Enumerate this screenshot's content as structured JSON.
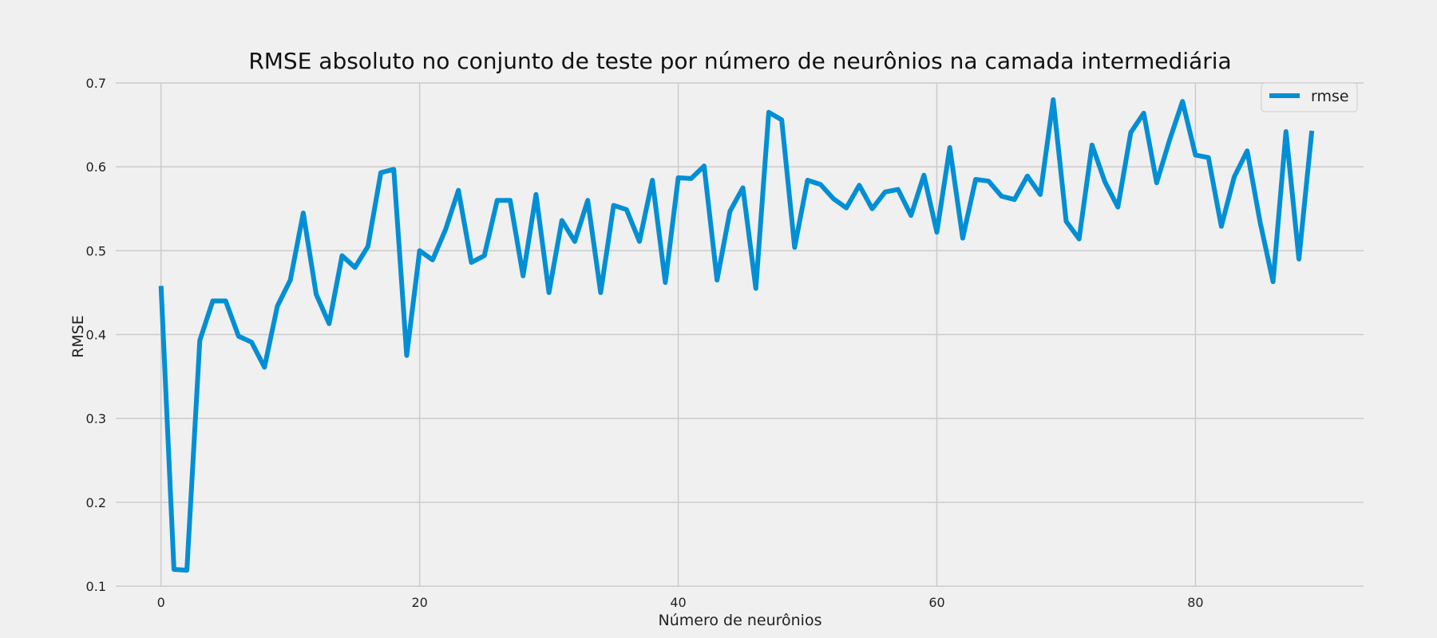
{
  "chart_data": {
    "type": "line",
    "title": "RMSE absoluto no conjunto de teste por número de neurônios na camada intermediária",
    "xlabel": "Número de neurônios",
    "ylabel": "RMSE",
    "xlim": [
      -3.5,
      93
    ],
    "ylim": [
      0.1,
      0.7
    ],
    "xticks": [
      0,
      20,
      40,
      60,
      80
    ],
    "yticks": [
      0.1,
      0.2,
      0.3,
      0.4,
      0.5,
      0.6,
      0.7
    ],
    "ytick_labels": [
      "0.1",
      "0.2",
      "0.3",
      "0.4",
      "0.5",
      "0.6",
      "0.7"
    ],
    "grid": true,
    "legend_position": "top-right",
    "colors": {
      "background": "#f0f0f0",
      "line": "#008fd5",
      "grid": "#cbcbcb"
    },
    "series": [
      {
        "name": "rmse",
        "x": [
          0,
          1,
          2,
          3,
          4,
          5,
          6,
          7,
          8,
          9,
          10,
          11,
          12,
          13,
          14,
          15,
          16,
          17,
          18,
          19,
          20,
          21,
          22,
          23,
          24,
          25,
          26,
          27,
          28,
          29,
          30,
          31,
          32,
          33,
          34,
          35,
          36,
          37,
          38,
          39,
          40,
          41,
          42,
          43,
          44,
          45,
          46,
          47,
          48,
          49,
          50,
          51,
          52,
          53,
          54,
          55,
          56,
          57,
          58,
          59,
          60,
          61,
          62,
          63,
          64,
          65,
          66,
          67,
          68,
          69,
          70,
          71,
          72,
          73,
          74,
          75,
          76,
          77,
          78,
          79,
          80,
          81,
          82,
          83,
          84,
          85,
          86,
          87,
          88,
          89
        ],
        "values": [
          0.458,
          0.12,
          0.119,
          0.393,
          0.44,
          0.44,
          0.398,
          0.391,
          0.361,
          0.434,
          0.465,
          0.545,
          0.448,
          0.413,
          0.494,
          0.48,
          0.505,
          0.593,
          0.597,
          0.375,
          0.5,
          0.489,
          0.525,
          0.572,
          0.486,
          0.494,
          0.56,
          0.56,
          0.47,
          0.567,
          0.45,
          0.536,
          0.511,
          0.56,
          0.45,
          0.554,
          0.549,
          0.511,
          0.584,
          0.462,
          0.587,
          0.586,
          0.601,
          0.465,
          0.547,
          0.575,
          0.455,
          0.665,
          0.656,
          0.504,
          0.584,
          0.579,
          0.562,
          0.551,
          0.578,
          0.55,
          0.57,
          0.573,
          0.542,
          0.59,
          0.522,
          0.623,
          0.515,
          0.585,
          0.583,
          0.565,
          0.561,
          0.589,
          0.567,
          0.68,
          0.535,
          0.514,
          0.626,
          0.582,
          0.552,
          0.641,
          0.664,
          0.581,
          0.632,
          0.678,
          0.614,
          0.611,
          0.529,
          0.588,
          0.619,
          0.534,
          0.463,
          0.642,
          0.49,
          0.643
        ]
      }
    ]
  }
}
